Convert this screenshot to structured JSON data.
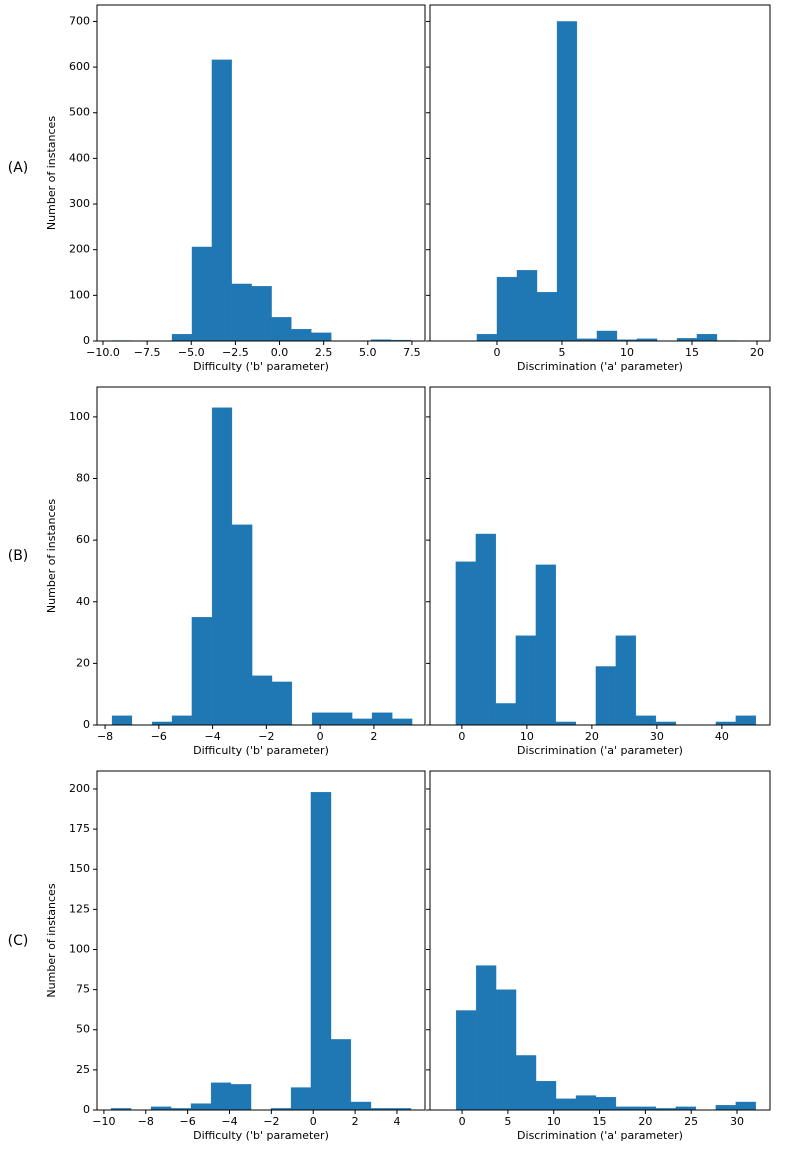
{
  "row_labels": [
    "(A)",
    "(B)",
    "(C)"
  ],
  "chart_data": [
    {
      "type": "histogram",
      "ylabel": "Number of instances",
      "xlabel": "Difficulty ('b' parameter)",
      "color": "#1f77b4",
      "bins": [
        -9.47,
        -8.34,
        -7.22,
        -6.09,
        -4.96,
        -3.83,
        -2.71,
        -1.58,
        -0.45,
        0.67,
        1.8,
        2.93,
        4.06,
        5.18,
        6.31,
        7.44
      ],
      "values": [
        1,
        0,
        0,
        15,
        206,
        616,
        125,
        120,
        52,
        26,
        18,
        0,
        0,
        3,
        2
      ],
      "xlim": [
        -10.34,
        8.24
      ],
      "xticks": [
        {
          "value": -10,
          "label": "−10.0"
        },
        {
          "value": -7.5,
          "label": "−7.5"
        },
        {
          "value": -5,
          "label": "−5.0"
        },
        {
          "value": -2.5,
          "label": "−2.5"
        },
        {
          "value": 0,
          "label": "0.0"
        },
        2.5,
        {
          "value": 5,
          "label": "5.0"
        },
        7.5
      ],
      "ylim": [
        0,
        736
      ],
      "yticks": [
        0,
        100,
        200,
        300,
        400,
        500,
        600,
        700
      ]
    },
    {
      "type": "histogram",
      "xlabel": "Discrimination ('a' parameter)",
      "color": "#1f77b4",
      "bins": [
        -1.54,
        0,
        1.54,
        3.08,
        4.62,
        6.15,
        7.69,
        9.23,
        10.77,
        12.31,
        13.85,
        15.38,
        16.92,
        18.46
      ],
      "values": [
        15,
        140,
        155,
        107,
        700,
        5,
        22,
        3,
        5,
        0,
        6,
        15,
        1
      ],
      "xlim": [
        -5.15,
        21
      ],
      "xticks": [
        0,
        5,
        10,
        15,
        20
      ],
      "ylim": [
        0,
        736
      ],
      "yticks": [
        0,
        100,
        200,
        300,
        400,
        500,
        600,
        700
      ]
    },
    {
      "type": "histogram",
      "ylabel": "Number of instances",
      "xlabel": "Difficulty ('b' parameter)",
      "color": "#1f77b4",
      "bins": [
        -7.74,
        -7.0,
        -6.25,
        -5.51,
        -4.77,
        -4.02,
        -3.28,
        -2.53,
        -1.79,
        -1.05,
        -0.3,
        0.44,
        1.19,
        1.93,
        2.68,
        3.42
      ],
      "values": [
        3,
        0,
        1,
        3,
        35,
        103,
        65,
        16,
        14,
        0,
        4,
        4,
        2,
        4,
        2
      ],
      "xlim": [
        -8.3,
        3.9
      ],
      "xticks": [
        {
          "value": -8,
          "label": "−8"
        },
        {
          "value": -6,
          "label": "−6"
        },
        {
          "value": -4,
          "label": "−4"
        },
        {
          "value": -2,
          "label": "−2"
        },
        0,
        2
      ],
      "ylim": [
        0,
        109.7
      ],
      "yticks": [
        0,
        20,
        40,
        60,
        80,
        100
      ]
    },
    {
      "type": "histogram",
      "xlabel": "Discrimination ('a' parameter)",
      "color": "#1f77b4",
      "bins": [
        -0.92,
        2.16,
        5.23,
        8.31,
        11.39,
        14.46,
        17.54,
        20.62,
        23.69,
        26.77,
        29.85,
        32.92,
        36.0,
        39.08,
        42.15,
        45.23
      ],
      "values": [
        53,
        62,
        7,
        29,
        52,
        1,
        0,
        19,
        29,
        3,
        1,
        0,
        0,
        1,
        3
      ],
      "xlim": [
        -4.9,
        47.4
      ],
      "xticks": [
        0,
        10,
        20,
        30,
        40
      ],
      "ylim": [
        0,
        109.7
      ],
      "yticks": [
        0,
        20,
        40,
        60,
        80,
        100
      ]
    },
    {
      "type": "histogram",
      "ylabel": "Number of instances",
      "xlabel": "Difficulty ('b' parameter)",
      "color": "#1f77b4",
      "bins": [
        -9.66,
        -8.7,
        -7.75,
        -6.79,
        -5.84,
        -4.88,
        -3.93,
        -2.97,
        -2.02,
        -1.06,
        -0.11,
        0.85,
        1.8,
        2.76,
        3.71,
        4.67
      ],
      "values": [
        1,
        0,
        2,
        1,
        4,
        17,
        16,
        0,
        1,
        14,
        198,
        44,
        5,
        1,
        1
      ],
      "xlim": [
        -10.33,
        5.34
      ],
      "xticks": [
        {
          "value": -10,
          "label": "−10"
        },
        {
          "value": -8,
          "label": "−8"
        },
        {
          "value": -6,
          "label": "−6"
        },
        {
          "value": -4,
          "label": "−4"
        },
        {
          "value": -2,
          "label": "−2"
        },
        0,
        2,
        4
      ],
      "ylim": [
        0,
        211.2
      ],
      "yticks": [
        0,
        25,
        50,
        75,
        100,
        125,
        150,
        175,
        200
      ]
    },
    {
      "type": "histogram",
      "xlabel": "Discrimination ('a' parameter)",
      "color": "#1f77b4",
      "bins": [
        -0.65,
        1.53,
        3.71,
        5.89,
        8.07,
        10.25,
        12.43,
        14.61,
        16.79,
        18.97,
        21.15,
        23.33,
        25.51,
        27.69,
        29.87,
        32.05
      ],
      "values": [
        62,
        90,
        75,
        34,
        18,
        7,
        9,
        8,
        2,
        2,
        1,
        2,
        0,
        3,
        5
      ],
      "xlim": [
        -3.5,
        33.6
      ],
      "xticks": [
        0,
        5,
        10,
        15,
        20,
        25,
        30
      ],
      "ylim": [
        0,
        211.2
      ],
      "yticks": [
        0,
        25,
        50,
        75,
        100,
        125,
        150,
        175,
        200
      ]
    }
  ]
}
